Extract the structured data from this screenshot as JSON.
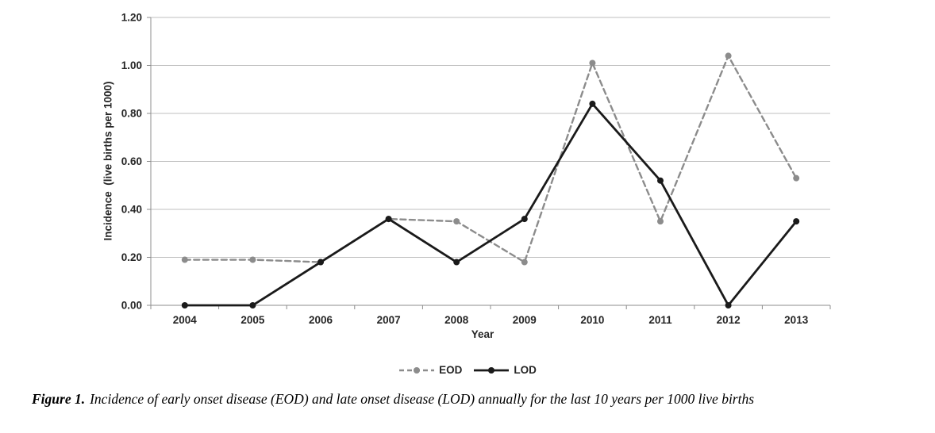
{
  "figure": {
    "caption_label": "Figure 1.",
    "caption_text": "Incidence of early onset disease (EOD) and late onset disease (LOD) annually for the last 10 years per 1000 live births"
  },
  "chart_data": {
    "type": "line",
    "title": "",
    "xlabel": "Year",
    "ylabel": "Incidence  (live births per 1000)",
    "categories": [
      "2004",
      "2005",
      "2006",
      "2007",
      "2008",
      "2009",
      "2010",
      "2011",
      "2012",
      "2013"
    ],
    "series": [
      {
        "name": "EOD",
        "values": [
          0.19,
          0.19,
          0.18,
          0.36,
          0.35,
          0.18,
          1.01,
          0.35,
          1.04,
          0.53
        ],
        "color": "#8c8c8c",
        "style": "dashed",
        "marker": "circle"
      },
      {
        "name": "LOD",
        "values": [
          0.0,
          0.0,
          0.18,
          0.36,
          0.18,
          0.36,
          0.84,
          0.52,
          0.0,
          0.35
        ],
        "color": "#1a1a1a",
        "style": "solid",
        "marker": "circle"
      }
    ],
    "ylim": [
      0,
      1.2
    ],
    "ytick_labels": [
      "0.00",
      "0.20",
      "0.40",
      "0.60",
      "0.80",
      "1.00",
      "1.20"
    ],
    "grid": "horizontal",
    "legend_position": "bottom",
    "colors": {
      "gridline": "#bfbfbf",
      "axis": "#8c8c8c",
      "tick_label": "#262626",
      "background": "#ffffff"
    }
  }
}
